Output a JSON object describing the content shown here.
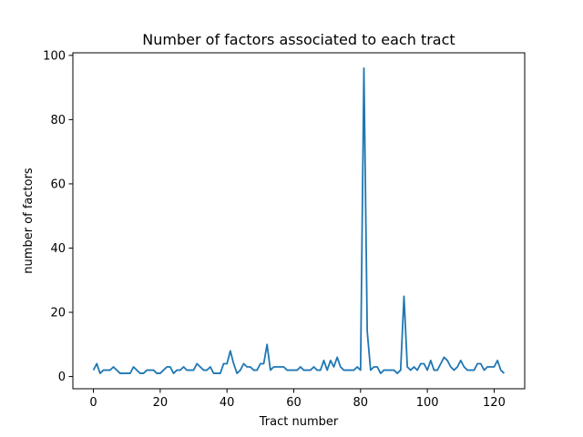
{
  "chart_data": {
    "type": "line",
    "title": "Number of factors associated to each tract",
    "xlabel": "Tract number",
    "ylabel": "number of factors",
    "xlim": [
      -6.15,
      129.15
    ],
    "ylim": [
      -3.8,
      100.8
    ],
    "xticks": [
      0,
      20,
      40,
      60,
      80,
      100,
      120
    ],
    "yticks": [
      0,
      20,
      40,
      60,
      80,
      100
    ],
    "grid": false,
    "series": [
      {
        "color": "#1f77b4",
        "x": [
          0,
          1,
          2,
          3,
          4,
          5,
          6,
          7,
          8,
          9,
          10,
          11,
          12,
          13,
          14,
          15,
          16,
          17,
          18,
          19,
          20,
          21,
          22,
          23,
          24,
          25,
          26,
          27,
          28,
          29,
          30,
          31,
          32,
          33,
          34,
          35,
          36,
          37,
          38,
          39,
          40,
          41,
          42,
          43,
          44,
          45,
          46,
          47,
          48,
          49,
          50,
          51,
          52,
          53,
          54,
          55,
          56,
          57,
          58,
          59,
          60,
          61,
          62,
          63,
          64,
          65,
          66,
          67,
          68,
          69,
          70,
          71,
          72,
          73,
          74,
          75,
          76,
          77,
          78,
          79,
          80,
          81,
          82,
          83,
          84,
          85,
          86,
          87,
          88,
          89,
          90,
          91,
          92,
          93,
          94,
          95,
          96,
          97,
          98,
          99,
          100,
          101,
          102,
          103,
          104,
          105,
          106,
          107,
          108,
          109,
          110,
          111,
          112,
          113,
          114,
          115,
          116,
          117,
          118,
          119,
          120,
          121,
          122,
          123
        ],
        "y": [
          2,
          4,
          1,
          2,
          2,
          2,
          3,
          2,
          1,
          1,
          1,
          1,
          3,
          2,
          1,
          1,
          2,
          2,
          2,
          1,
          1,
          2,
          3,
          3,
          1,
          2,
          2,
          3,
          2,
          2,
          2,
          4,
          3,
          2,
          2,
          3,
          1,
          1,
          1,
          4,
          4,
          8,
          4,
          1,
          2,
          4,
          3,
          3,
          2,
          2,
          4,
          4,
          10,
          2,
          3,
          3,
          3,
          3,
          2,
          2,
          2,
          2,
          3,
          2,
          2,
          2,
          3,
          2,
          2,
          5,
          2,
          5,
          3,
          6,
          3,
          2,
          2,
          2,
          2,
          3,
          2,
          96,
          14,
          2,
          3,
          3,
          1,
          2,
          2,
          2,
          2,
          1,
          2,
          25,
          3,
          2,
          3,
          2,
          4,
          4,
          2,
          5,
          2,
          2,
          4,
          6,
          5,
          3,
          2,
          3,
          5,
          3,
          2,
          2,
          2,
          4,
          4,
          2,
          3,
          3,
          3,
          5,
          2,
          1
        ]
      }
    ]
  }
}
